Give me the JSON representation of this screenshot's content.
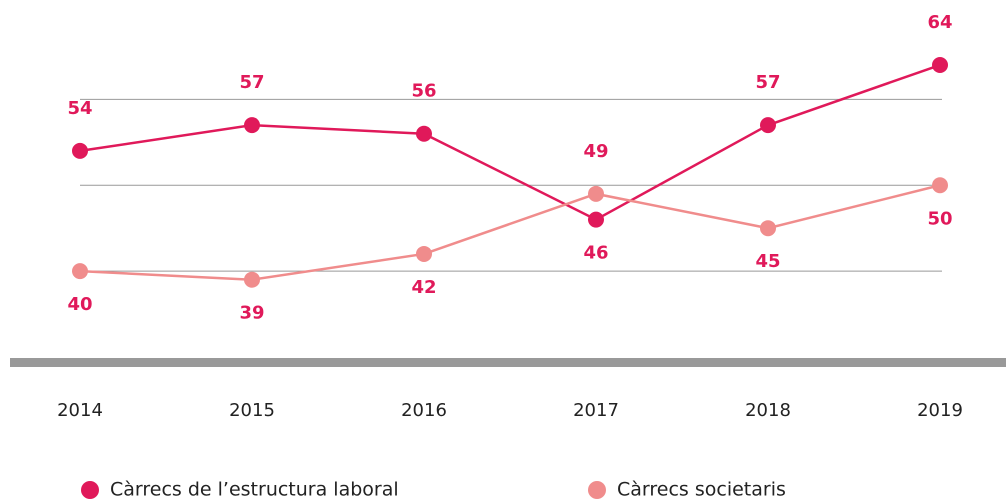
{
  "chart_data": {
    "type": "line",
    "categories": [
      "2014",
      "2015",
      "2016",
      "2017",
      "2018",
      "2019"
    ],
    "series": [
      {
        "name": "Càrrecs de l’estructura laboral",
        "color": "#e0195a",
        "values": [
          54,
          57,
          56,
          46,
          57,
          64
        ]
      },
      {
        "name": "Càrrecs societaris",
        "color": "#f08c8c",
        "values": [
          40,
          39,
          42,
          49,
          45,
          50
        ]
      }
    ],
    "ylim": [
      30,
      70
    ],
    "yticks": [
      40,
      50,
      60
    ],
    "grid": true,
    "legend": "bottom"
  }
}
